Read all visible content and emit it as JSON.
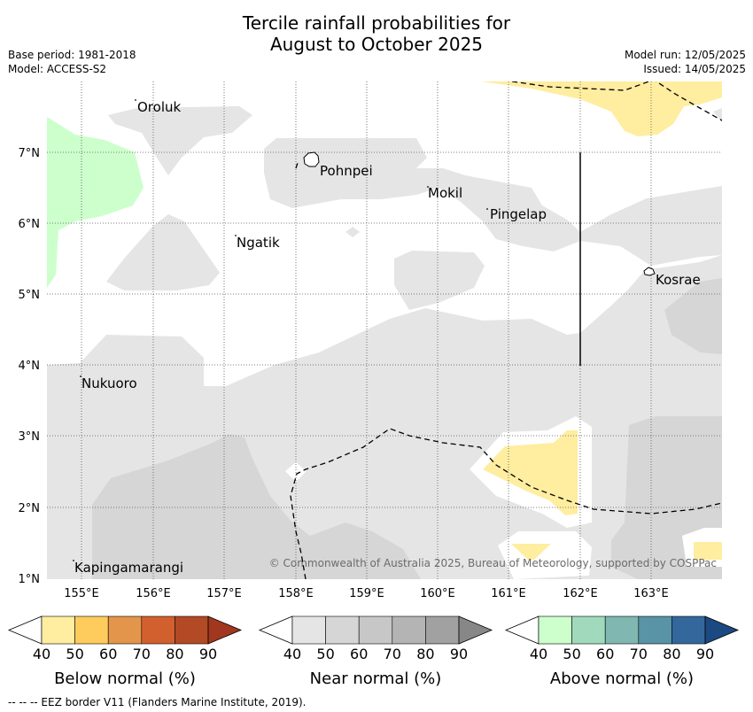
{
  "title_line1": "Tercile rainfall probabilities for",
  "title_line2": "August to October 2025",
  "base_period": "Base period: 1981-2018",
  "model": "Model: ACCESS-S2",
  "model_run": "Model run: 12/05/2025",
  "issued": "Issued: 14/05/2025",
  "map": {
    "lon_ticks": [
      "155°E",
      "156°E",
      "157°E",
      "158°E",
      "159°E",
      "160°E",
      "161°E",
      "162°E",
      "163°E"
    ],
    "lat_ticks": [
      "7°N",
      "6°N",
      "5°N",
      "4°N",
      "3°N",
      "2°N",
      "1°N"
    ],
    "places": [
      "Oroluk",
      "Pohnpei",
      "Mokil",
      "Pingelap",
      "Ngatik",
      "Kosrae",
      "Nukuoro",
      "Kapingamarangi"
    ],
    "copyright": "© Commonwealth of Australia 2025, Bureau of Meteorology, supported by COSPPac",
    "colors": {
      "below_40": "#ffeda0",
      "near_40": "#e5e5e5",
      "near_50": "#d6d6d6",
      "above_40": "#ccffcc",
      "grid": "#555555"
    }
  },
  "colorbars": [
    {
      "title": "Below normal (%)",
      "ticks": [
        "40",
        "50",
        "60",
        "70",
        "80",
        "90"
      ],
      "colors": [
        "#ffeda0",
        "#fecc5c",
        "#e3964b",
        "#d2602f",
        "#b34a26",
        "#a0371e"
      ]
    },
    {
      "title": "Near normal (%)",
      "ticks": [
        "40",
        "50",
        "60",
        "70",
        "80",
        "90"
      ],
      "colors": [
        "#e5e5e5",
        "#d6d6d6",
        "#c7c7c7",
        "#b4b4b4",
        "#a1a1a1",
        "#878787"
      ]
    },
    {
      "title": "Above normal (%)",
      "ticks": [
        "40",
        "50",
        "60",
        "70",
        "80",
        "90"
      ],
      "colors": [
        "#ccffcc",
        "#a1d9bc",
        "#80b7b0",
        "#5993a6",
        "#34689c",
        "#1b4a82"
      ]
    }
  ],
  "footnote": "--  --  -- EEZ border V11 (Flanders Marine Institute, 2019)."
}
